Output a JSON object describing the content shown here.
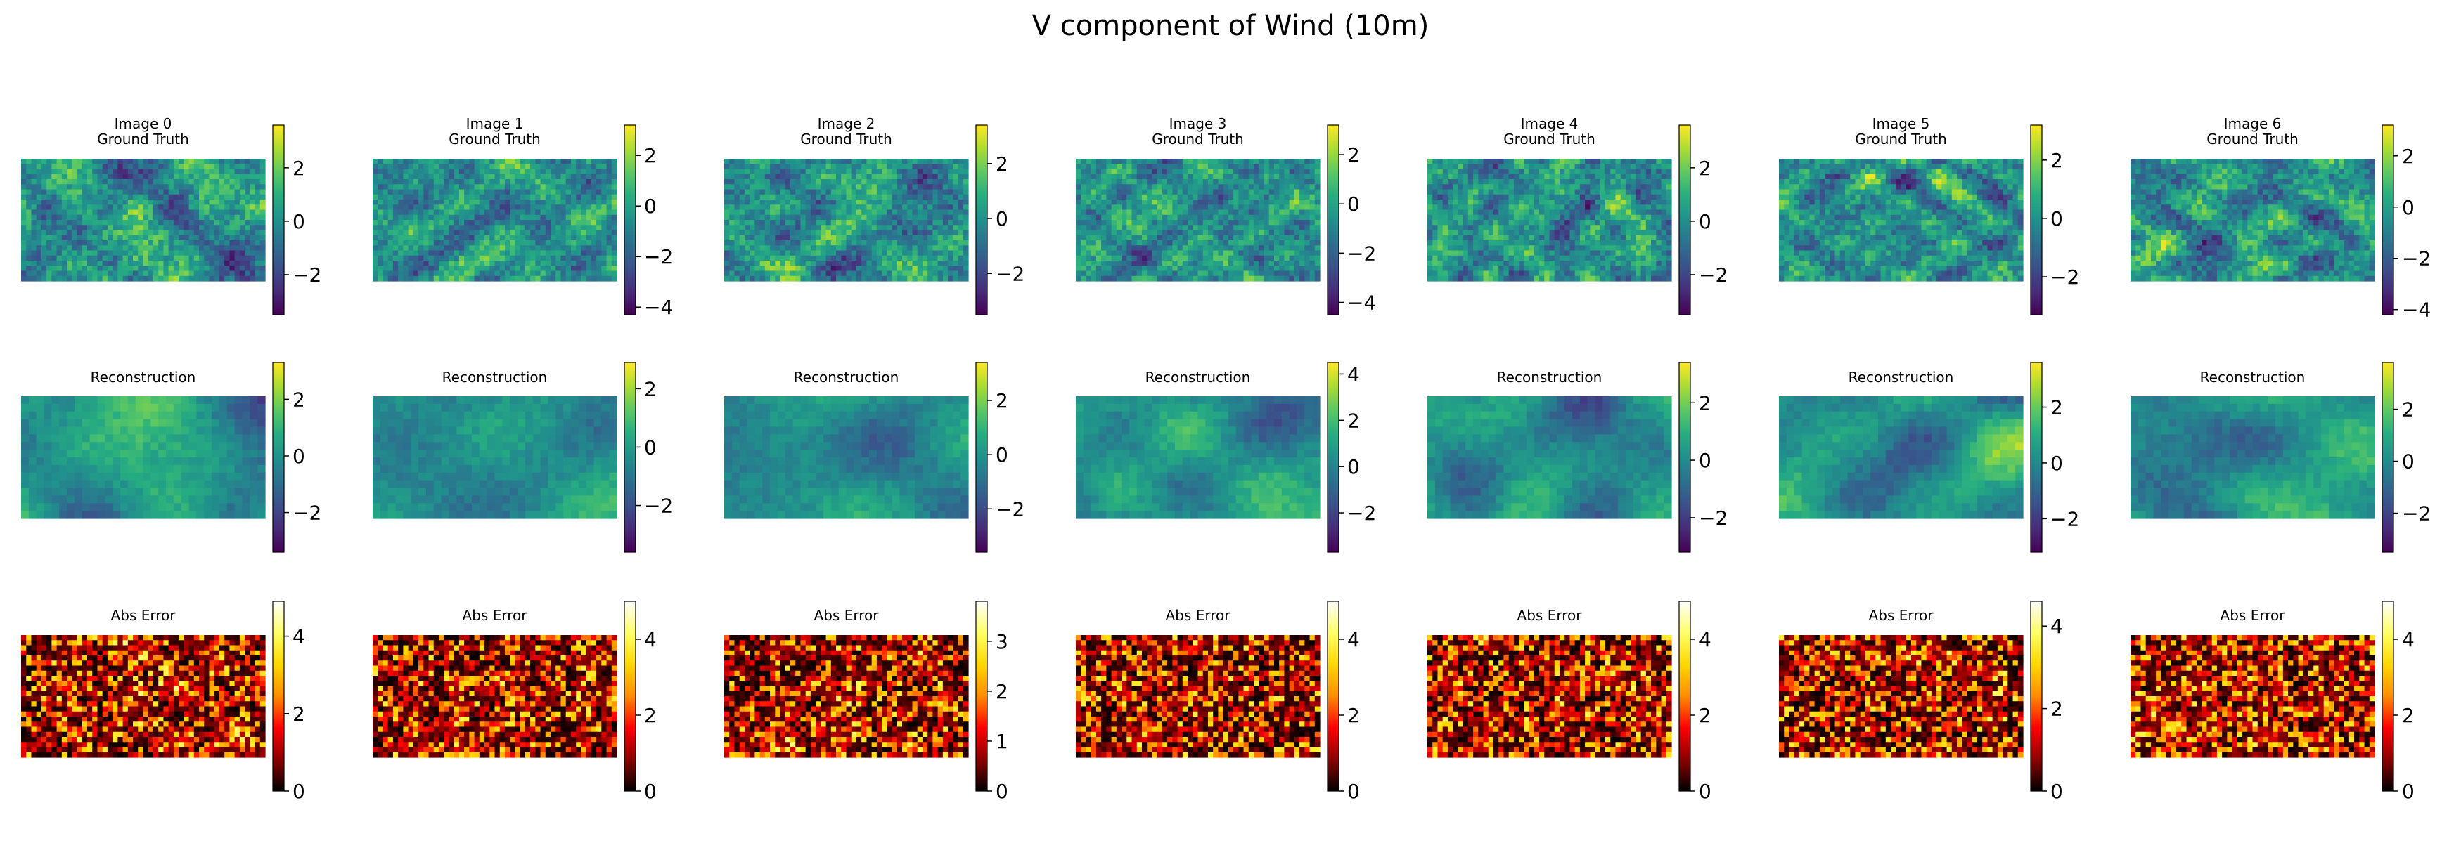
{
  "title": "V component of Wind (10m)",
  "row_titles": {
    "ground_truth": "Ground Truth",
    "reconstruction": "Reconstruction",
    "error": "Abs Error"
  },
  "colormaps": {
    "viridis": [
      "#440154",
      "#472c7a",
      "#3b518b",
      "#2c718e",
      "#21908d",
      "#27ad81",
      "#5cc863",
      "#aadc32",
      "#fde725"
    ],
    "hot": [
      "#000000",
      "#8b0000",
      "#ff0000",
      "#ff8c00",
      "#ffd700",
      "#ffff66",
      "#ffffff"
    ]
  },
  "chart_data": [
    {
      "type": "heatmap",
      "image": "Image 0",
      "row": "Ground Truth",
      "colormap": "viridis",
      "range": [
        -3.5,
        3.6
      ],
      "colorbar_ticks": [
        2,
        0,
        -2
      ]
    },
    {
      "type": "heatmap",
      "image": "Image 1",
      "row": "Ground Truth",
      "colormap": "viridis",
      "range": [
        -4.3,
        3.2
      ],
      "colorbar_ticks": [
        2,
        0,
        -2,
        -4
      ]
    },
    {
      "type": "heatmap",
      "image": "Image 2",
      "row": "Ground Truth",
      "colormap": "viridis",
      "range": [
        -3.5,
        3.4
      ],
      "colorbar_ticks": [
        2,
        0,
        -2
      ]
    },
    {
      "type": "heatmap",
      "image": "Image 3",
      "row": "Ground Truth",
      "colormap": "viridis",
      "range": [
        -4.5,
        3.2
      ],
      "colorbar_ticks": [
        2,
        0,
        -2,
        -4
      ]
    },
    {
      "type": "heatmap",
      "image": "Image 4",
      "row": "Ground Truth",
      "colormap": "viridis",
      "range": [
        -3.5,
        3.6
      ],
      "colorbar_ticks": [
        2,
        0,
        -2
      ]
    },
    {
      "type": "heatmap",
      "image": "Image 5",
      "row": "Ground Truth",
      "colormap": "viridis",
      "range": [
        -3.3,
        3.2
      ],
      "colorbar_ticks": [
        2,
        0,
        -2
      ]
    },
    {
      "type": "heatmap",
      "image": "Image 6",
      "row": "Ground Truth",
      "colormap": "viridis",
      "range": [
        -4.2,
        3.2
      ],
      "colorbar_ticks": [
        2,
        0,
        -2,
        -4
      ]
    },
    {
      "type": "heatmap",
      "image": "Image 0",
      "row": "Reconstruction",
      "colormap": "viridis",
      "range": [
        -3.4,
        3.3
      ],
      "colorbar_ticks": [
        2,
        0,
        -2
      ]
    },
    {
      "type": "heatmap",
      "image": "Image 1",
      "row": "Reconstruction",
      "colormap": "viridis",
      "range": [
        -3.6,
        2.9
      ],
      "colorbar_ticks": [
        2,
        0,
        -2
      ]
    },
    {
      "type": "heatmap",
      "image": "Image 2",
      "row": "Reconstruction",
      "colormap": "viridis",
      "range": [
        -3.6,
        3.4
      ],
      "colorbar_ticks": [
        2,
        0,
        -2
      ]
    },
    {
      "type": "heatmap",
      "image": "Image 3",
      "row": "Reconstruction",
      "colormap": "viridis",
      "range": [
        -3.7,
        4.5
      ],
      "colorbar_ticks": [
        4,
        2,
        0,
        -2
      ]
    },
    {
      "type": "heatmap",
      "image": "Image 4",
      "row": "Reconstruction",
      "colormap": "viridis",
      "range": [
        -3.2,
        3.4
      ],
      "colorbar_ticks": [
        2,
        0,
        -2
      ]
    },
    {
      "type": "heatmap",
      "image": "Image 5",
      "row": "Reconstruction",
      "colormap": "viridis",
      "range": [
        -3.2,
        3.6
      ],
      "colorbar_ticks": [
        2,
        0,
        -2
      ]
    },
    {
      "type": "heatmap",
      "image": "Image 6",
      "row": "Reconstruction",
      "colormap": "viridis",
      "range": [
        -3.5,
        3.8
      ],
      "colorbar_ticks": [
        2,
        0,
        -2
      ]
    },
    {
      "type": "heatmap",
      "image": "Image 0",
      "row": "Abs Error",
      "colormap": "hot",
      "range": [
        0,
        4.9
      ],
      "colorbar_ticks": [
        4,
        2,
        0
      ]
    },
    {
      "type": "heatmap",
      "image": "Image 1",
      "row": "Abs Error",
      "colormap": "hot",
      "range": [
        0,
        5.0
      ],
      "colorbar_ticks": [
        4,
        2,
        0
      ]
    },
    {
      "type": "heatmap",
      "image": "Image 2",
      "row": "Abs Error",
      "colormap": "hot",
      "range": [
        0,
        3.8
      ],
      "colorbar_ticks": [
        3,
        2,
        1,
        0
      ]
    },
    {
      "type": "heatmap",
      "image": "Image 3",
      "row": "Abs Error",
      "colormap": "hot",
      "range": [
        0,
        5.0
      ],
      "colorbar_ticks": [
        4,
        2,
        0
      ]
    },
    {
      "type": "heatmap",
      "image": "Image 4",
      "row": "Abs Error",
      "colormap": "hot",
      "range": [
        0,
        5.0
      ],
      "colorbar_ticks": [
        4,
        2,
        0
      ]
    },
    {
      "type": "heatmap",
      "image": "Image 5",
      "row": "Abs Error",
      "colormap": "hot",
      "range": [
        0,
        4.6
      ],
      "colorbar_ticks": [
        4,
        2,
        0
      ]
    },
    {
      "type": "heatmap",
      "image": "Image 6",
      "row": "Abs Error",
      "colormap": "hot",
      "range": [
        0,
        5.0
      ],
      "colorbar_ticks": [
        4,
        2,
        0
      ]
    }
  ]
}
